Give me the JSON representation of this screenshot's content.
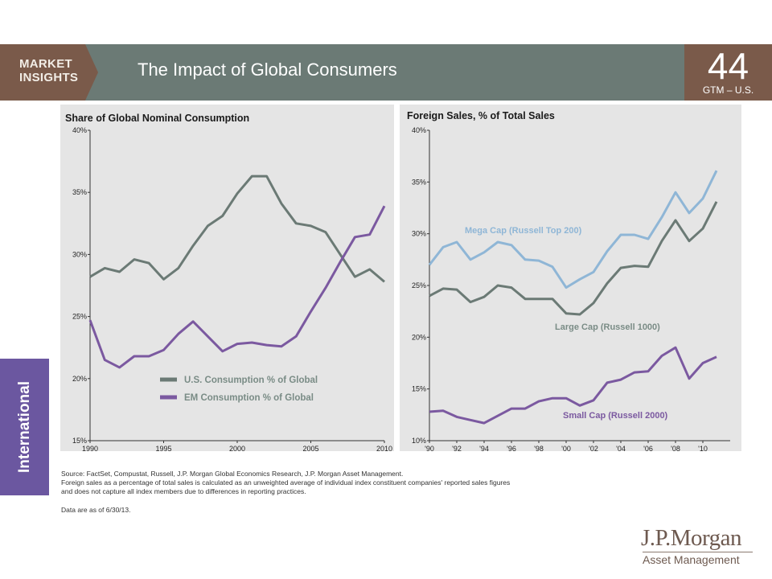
{
  "header": {
    "brand": [
      "MARKET",
      "INSIGHTS"
    ],
    "title": "The Impact of Global Consumers",
    "page_number": "44",
    "page_sub": "GTM – U.S."
  },
  "side_tab": {
    "label": "International"
  },
  "colors": {
    "banner": "#6b7a75",
    "page_box": "#7a5a4a",
    "side_tab": "#6b57a0",
    "panel_bg": "#e5e5e5",
    "us_line": "#6b7a75",
    "em_line": "#7b59a0",
    "mega_line": "#8fb6d6",
    "large_line": "#6b7a75",
    "small_line": "#7b59a0"
  },
  "chart_data": [
    {
      "type": "line",
      "title": "Share of Global Nominal Consumption",
      "xlim": [
        1990,
        2010
      ],
      "ylim": [
        15,
        40
      ],
      "x_ticks": [
        "1990",
        "1995",
        "2000",
        "2005",
        "2010"
      ],
      "y_ticks": [
        "15%",
        "20%",
        "25%",
        "30%",
        "35%",
        "40%"
      ],
      "legend_position": "bottom-center",
      "x": [
        1990,
        1991,
        1992,
        1993,
        1994,
        1995,
        1996,
        1997,
        1998,
        1999,
        2000,
        2001,
        2002,
        2003,
        2004,
        2005,
        2006,
        2007,
        2008,
        2009,
        2010
      ],
      "series": [
        {
          "name": "U.S. Consumption % of Global",
          "color": "#6b7a75",
          "values": [
            28.2,
            28.9,
            28.6,
            29.6,
            29.3,
            28.0,
            28.9,
            30.7,
            32.3,
            33.1,
            34.9,
            36.3,
            36.3,
            34.1,
            32.5,
            32.3,
            31.8,
            30.0,
            28.2,
            28.8,
            27.8
          ]
        },
        {
          "name": "EM Consumption % of Global",
          "color": "#7b59a0",
          "values": [
            24.7,
            21.5,
            20.9,
            21.8,
            21.8,
            22.3,
            23.6,
            24.6,
            23.4,
            22.2,
            22.8,
            22.9,
            22.7,
            22.6,
            23.4,
            25.4,
            27.3,
            29.4,
            31.4,
            31.6,
            33.9
          ]
        }
      ]
    },
    {
      "type": "line",
      "title": "Foreign Sales, % of Total Sales",
      "xlim": [
        1990,
        2012
      ],
      "ylim": [
        10,
        40
      ],
      "x_ticks": [
        "'90",
        "'92",
        "'94",
        "'96",
        "'98",
        "'00",
        "'02",
        "'04",
        "'06",
        "'08",
        "'10"
      ],
      "y_ticks": [
        "10%",
        "15%",
        "20%",
        "25%",
        "30%",
        "35%",
        "40%"
      ],
      "x": [
        1990,
        1991,
        1992,
        1993,
        1994,
        1995,
        1996,
        1997,
        1998,
        1999,
        2000,
        2001,
        2002,
        2003,
        2004,
        2005,
        2006,
        2007,
        2008,
        2009,
        2010,
        2011
      ],
      "series": [
        {
          "name": "Mega Cap (Russell Top 200)",
          "color": "#8fb6d6",
          "values": [
            27.0,
            28.7,
            29.2,
            27.5,
            28.2,
            29.2,
            28.9,
            27.5,
            27.4,
            26.8,
            24.8,
            25.6,
            26.3,
            28.3,
            29.9,
            29.9,
            29.5,
            31.6,
            34.0,
            32.0,
            33.4,
            36.1
          ]
        },
        {
          "name": "Large Cap (Russell 1000)",
          "color": "#6b7a75",
          "values": [
            24.0,
            24.7,
            24.6,
            23.4,
            23.9,
            25.0,
            24.8,
            23.7,
            23.7,
            23.7,
            22.3,
            22.2,
            23.3,
            25.2,
            26.7,
            26.9,
            26.8,
            29.3,
            31.3,
            29.3,
            30.5,
            33.1
          ]
        },
        {
          "name": "Small Cap (Russell 2000)",
          "color": "#7b59a0",
          "values": [
            12.8,
            12.9,
            12.3,
            12.0,
            11.7,
            12.4,
            13.1,
            13.1,
            13.8,
            14.1,
            14.1,
            13.4,
            13.9,
            15.6,
            15.9,
            16.6,
            16.7,
            18.2,
            19.0,
            16.0,
            17.5,
            18.1
          ]
        }
      ]
    }
  ],
  "notes": {
    "source_lines": [
      "Source: FactSet, Compustat, Russell, J.P. Morgan Global Economics Research, J.P. Morgan Asset Management.",
      "Foreign sales as a percentage of total sales is calculated as an unweighted average of individual index constituent companies' reported sales figures",
      "and does not capture all index members due to differences in reporting practices."
    ],
    "as_of": "Data are as of 6/30/13."
  },
  "logo": {
    "name": "J.P.Morgan",
    "sub": "Asset Management"
  }
}
